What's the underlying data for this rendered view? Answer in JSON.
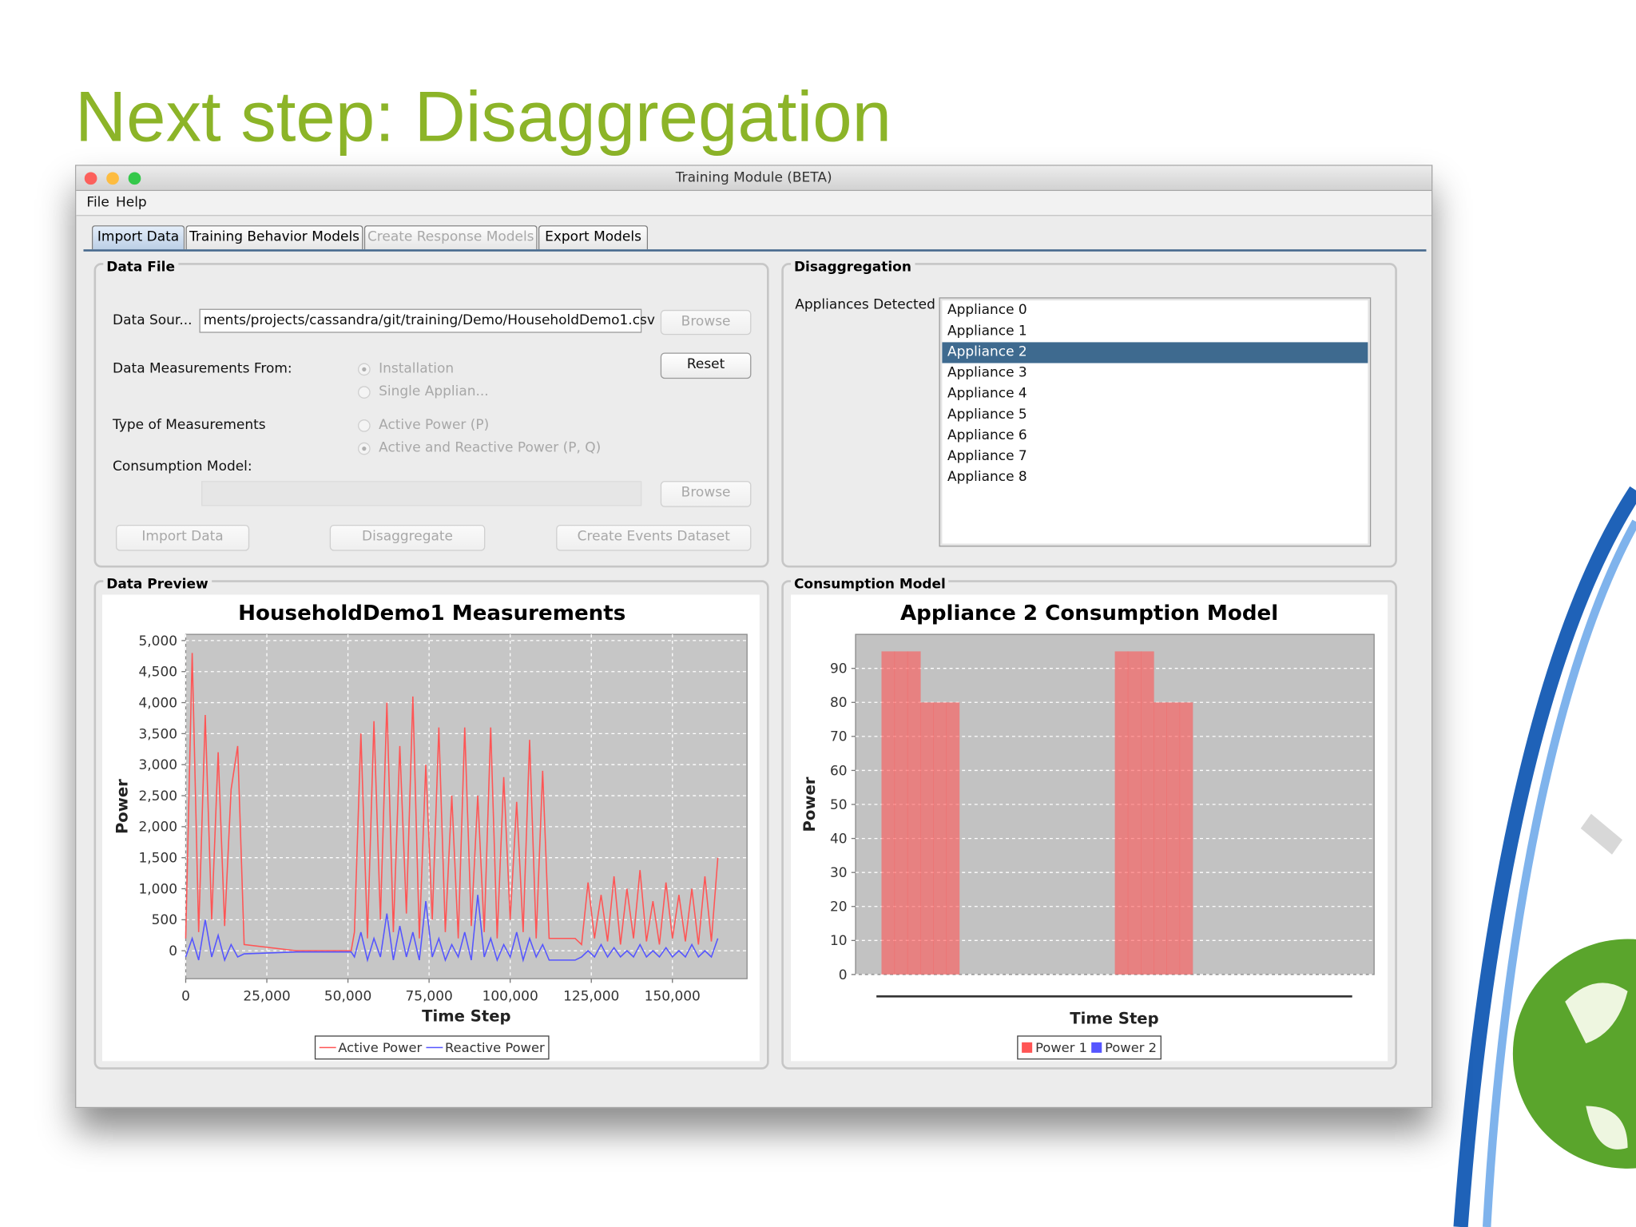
{
  "slide": {
    "title": "Next step: Disaggregation"
  },
  "window": {
    "title": "Training Module (BETA)",
    "menu": [
      "File",
      "Help"
    ],
    "tabs": [
      "Import Data",
      "Training Behavior Models",
      "Create Response Models",
      "Export Models"
    ],
    "selected_tab": 0,
    "disabled_tabs": [
      2
    ],
    "data_file": {
      "label": "Data File",
      "source_label": "Data Sour...",
      "source_value": "ments/projects/cassandra/git/training/Demo/HouseholdDemo1.csv",
      "source_browse": "Browse",
      "measurements_from_label": "Data Measurements From:",
      "measurements_from_options": [
        "Installation",
        "Single Applian..."
      ],
      "measurements_from_selected": 0,
      "reset": "Reset",
      "type_label": "Type of Measurements",
      "type_options": [
        "Active Power (P)",
        "Active and Reactive Power (P, Q)"
      ],
      "type_selected": 1,
      "consumption_model_label": "Consumption Model:",
      "model_browse": "Browse",
      "buttons": [
        "Import Data",
        "Disaggregate",
        "Create Events Dataset"
      ]
    },
    "disaggregation": {
      "label": "Disaggregation",
      "appliances_label": "Appliances Detected",
      "appliances": [
        "Appliance 0",
        "Appliance 1",
        "Appliance 2",
        "Appliance 3",
        "Appliance 4",
        "Appliance 5",
        "Appliance 6",
        "Appliance 7",
        "Appliance 8"
      ],
      "selected": 2
    },
    "data_preview": {
      "label": "Data Preview"
    },
    "consumption_model": {
      "label": "Consumption Model"
    }
  },
  "chart_data": [
    {
      "type": "line",
      "title": "HouseholdDemo1 Measurements",
      "x_label": "Time Step",
      "y_label": "Power",
      "x": [
        0,
        2000,
        4000,
        6000,
        8000,
        10000,
        12000,
        14000,
        16000,
        18000,
        34000,
        51000,
        52000,
        54000,
        56000,
        58000,
        60000,
        62000,
        64000,
        66000,
        68000,
        70000,
        72000,
        74000,
        76000,
        78000,
        80000,
        82000,
        84000,
        86000,
        88000,
        90000,
        92000,
        94000,
        96000,
        98000,
        100000,
        102000,
        104000,
        106000,
        108000,
        110000,
        112000,
        120000,
        122000,
        124000,
        126000,
        128000,
        130000,
        132000,
        134000,
        136000,
        138000,
        140000,
        142000,
        144000,
        146000,
        148000,
        150000,
        152000,
        154000,
        156000,
        158000,
        160000,
        162000,
        164000
      ],
      "series": [
        {
          "name": "Active Power",
          "color": "#ff5555",
          "values": [
            200,
            4800,
            300,
            3800,
            500,
            3200,
            400,
            2600,
            3300,
            100,
            0,
            0,
            300,
            3500,
            200,
            3700,
            500,
            4000,
            300,
            3300,
            600,
            4100,
            200,
            3000,
            500,
            3600,
            300,
            2500,
            200,
            3600,
            400,
            2500,
            300,
            3600,
            200,
            2800,
            500,
            2400,
            300,
            3400,
            200,
            2900,
            200,
            200,
            100,
            1100,
            200,
            900,
            150,
            1200,
            100,
            1000,
            200,
            1300,
            150,
            800,
            100,
            1100,
            200,
            900,
            150,
            1000,
            100,
            1200,
            150,
            1500
          ]
        },
        {
          "name": "Reactive Power",
          "color": "#5555ff",
          "values": [
            -100,
            200,
            -150,
            500,
            -100,
            250,
            -150,
            100,
            -100,
            -50,
            -20,
            -20,
            -100,
            300,
            -150,
            200,
            -100,
            600,
            -150,
            400,
            -100,
            300,
            -150,
            800,
            -100,
            200,
            -150,
            100,
            -100,
            300,
            -150,
            900,
            -100,
            200,
            -150,
            100,
            -100,
            300,
            -150,
            200,
            -100,
            100,
            -150,
            -150,
            -100,
            0,
            -100,
            100,
            -100,
            50,
            -100,
            0,
            -100,
            100,
            -100,
            0,
            -100,
            50,
            -100,
            0,
            -100,
            100,
            -100,
            0,
            -100,
            200
          ]
        }
      ],
      "xlim": [
        0,
        173000
      ],
      "ylim": [
        -450,
        5100
      ],
      "xticks": [
        0,
        {
          "value": 25000,
          "label": "25,000"
        },
        {
          "value": 50000,
          "label": "50,000"
        },
        {
          "value": 75000,
          "label": "75,000"
        },
        {
          "value": 100000,
          "label": "100,000"
        },
        {
          "value": 125000,
          "label": "125,000"
        },
        {
          "value": 150000,
          "label": "150,000"
        }
      ],
      "yticks": [
        0,
        500,
        {
          "value": 1000,
          "label": "1,000"
        },
        {
          "value": 1500,
          "label": "1,500"
        },
        {
          "value": 2000,
          "label": "2,000"
        },
        {
          "value": 2500,
          "label": "2,500"
        },
        {
          "value": 3000,
          "label": "3,000"
        },
        {
          "value": 3500,
          "label": "3,500"
        },
        {
          "value": 4000,
          "label": "4,000"
        },
        {
          "value": 4500,
          "label": "4,500"
        },
        {
          "value": 5000,
          "label": "5,000"
        }
      ],
      "grid": true,
      "legend": "bottom"
    },
    {
      "type": "bar",
      "title": "Appliance 2 Consumption Model",
      "x_label": "Time Step",
      "y_label": "Power",
      "categories": [
        null,
        null,
        null,
        null,
        null,
        null,
        null,
        null,
        null,
        null,
        null,
        null,
        null,
        null,
        null,
        null,
        null,
        null,
        null,
        null,
        null,
        null,
        null,
        null,
        null,
        null,
        null,
        null,
        null,
        null,
        null,
        null,
        null,
        null,
        null,
        null,
        null,
        null,
        null,
        null
      ],
      "series": [
        {
          "name": "Power 1",
          "color": "#ff5555",
          "values": [
            0,
            0,
            95,
            95,
            95,
            80,
            80,
            80,
            0,
            0,
            0,
            0,
            0,
            0,
            0,
            0,
            0,
            0,
            0,
            0,
            95,
            95,
            95,
            80,
            80,
            80,
            0,
            0,
            0,
            0,
            0,
            0,
            0,
            0,
            0,
            0,
            0,
            0,
            0,
            0
          ]
        },
        {
          "name": "Power 2",
          "color": "#5555ff",
          "values": [
            0,
            0,
            0,
            0,
            0,
            0,
            0,
            0,
            0,
            0,
            0,
            0,
            0,
            0,
            0,
            0,
            0,
            0,
            0,
            0,
            0,
            0,
            0,
            0,
            0,
            0,
            0,
            0,
            0,
            0,
            0,
            0,
            0,
            0,
            0,
            0,
            0,
            0,
            0,
            0
          ]
        }
      ],
      "ylim": [
        0,
        100
      ],
      "yticks": [
        0,
        10,
        20,
        30,
        40,
        50,
        60,
        70,
        80,
        90
      ],
      "grid": true,
      "legend": "bottom"
    }
  ]
}
